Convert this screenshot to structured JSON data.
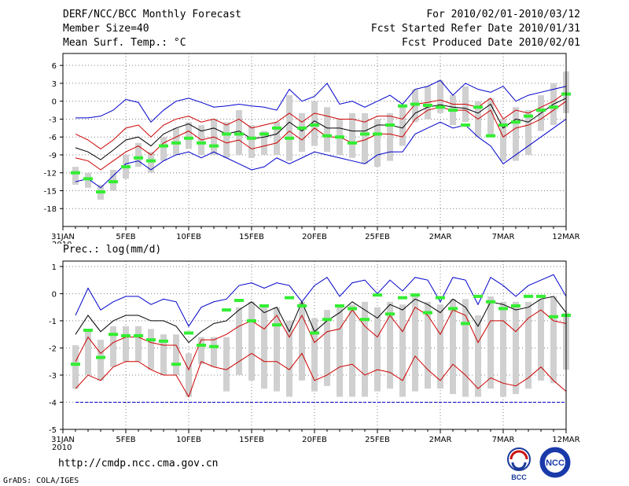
{
  "header": {
    "title": "DERF/NCC/BCC Monthly Forecast",
    "member_size": "Member Size=40",
    "panel1_label": "Mean Surf. Temp.: °C",
    "period": "For 2010/02/01-2010/03/12",
    "fcst_started": "Fcst Started Refer Date 2010/01/31",
    "fcst_produced": "Fcst Produced Date 2010/02/01"
  },
  "panel2_label": "Prec.: log(mm/d)",
  "footer": {
    "url": "http://cmdp.ncc.cma.gov.cn",
    "grads": "GrADS: COLA/IGES",
    "logo_bcc": "BCC",
    "logo_ncc": "NCC"
  },
  "x_axis": {
    "tick_labels": [
      "31JAN",
      "5FEB",
      "10FEB",
      "15FEB",
      "20FEB",
      "25FEB",
      "2MAR",
      "7MAR",
      "12MAR"
    ],
    "tick_days": [
      0,
      5,
      10,
      15,
      20,
      25,
      30,
      35,
      40
    ],
    "year_label": "2010"
  },
  "colors": {
    "mean": "#000000",
    "spread": "#cc0000",
    "extremes": "#0000cc",
    "box": "#d0d0d0",
    "obs": "#33ee33",
    "grid": "#808080"
  },
  "chart_data": [
    {
      "type": "line",
      "title": "Mean Surf. Temp.: °C",
      "x": [
        1,
        2,
        3,
        4,
        5,
        6,
        7,
        8,
        9,
        10,
        11,
        12,
        13,
        14,
        15,
        16,
        17,
        18,
        19,
        20,
        21,
        22,
        23,
        24,
        25,
        26,
        27,
        28,
        29,
        30,
        31,
        32,
        33,
        34,
        35,
        36,
        37,
        38,
        39,
        40
      ],
      "ylim": [
        -21,
        8
      ],
      "yticks": [
        6,
        3,
        0,
        -3,
        -6,
        -9,
        -12,
        -15,
        -18
      ],
      "series": [
        {
          "name": "max",
          "color": "blue",
          "values": [
            -2.8,
            -2.8,
            -2.5,
            -1.5,
            0.3,
            -0.2,
            -3.5,
            -1.5,
            0,
            0.5,
            -0.2,
            -1,
            -0.8,
            -0.5,
            -0.8,
            -1,
            -1.5,
            2,
            0,
            0.8,
            3,
            -0.5,
            0,
            -1,
            0,
            1,
            -0.5,
            2,
            2.5,
            3.5,
            1,
            3,
            2,
            1.5,
            2.5,
            0,
            1,
            1.5,
            2,
            2.5
          ]
        },
        {
          "name": "upper",
          "color": "red",
          "values": [
            -5.5,
            -6.5,
            -8,
            -6.5,
            -4.5,
            -4,
            -6,
            -4,
            -3,
            -2.5,
            -3.5,
            -3,
            -4,
            -3,
            -4.5,
            -4,
            -3.5,
            -2,
            -3.5,
            -2,
            -2.5,
            -3,
            -3,
            -3.5,
            -2.5,
            -2.5,
            -3,
            -0.5,
            -0.2,
            0.2,
            -0.5,
            -0.5,
            -1,
            0.5,
            -3,
            -1.5,
            -2,
            -1,
            0,
            1.5
          ]
        },
        {
          "name": "mean",
          "color": "black",
          "values": [
            -7.8,
            -8.5,
            -9.8,
            -8.2,
            -6.5,
            -6,
            -7.5,
            -5.5,
            -4.5,
            -3.8,
            -5,
            -4.5,
            -5.5,
            -5,
            -6.3,
            -6,
            -5.5,
            -3.5,
            -5,
            -3.3,
            -4.5,
            -4.5,
            -5,
            -5,
            -4,
            -4,
            -4.5,
            -2,
            -1,
            -0.6,
            -1,
            -1.2,
            -2,
            -0.5,
            -4.5,
            -3,
            -3.5,
            -2,
            -0.5,
            0.5
          ]
        },
        {
          "name": "lower",
          "color": "red",
          "values": [
            -9.5,
            -10,
            -11.5,
            -10,
            -8.5,
            -7.5,
            -9,
            -7,
            -6,
            -5,
            -6.5,
            -6,
            -7,
            -6.5,
            -8,
            -7.5,
            -7,
            -5,
            -6.5,
            -4.5,
            -6,
            -6,
            -7,
            -6.5,
            -5.5,
            -5.5,
            -6,
            -3,
            -1.5,
            -1,
            -1.5,
            -1.5,
            -3,
            -1.5,
            -6,
            -4.5,
            -4,
            -3,
            -1.5,
            0
          ]
        },
        {
          "name": "min",
          "color": "blue",
          "values": [
            -13.5,
            -13,
            -14.5,
            -12.5,
            -10.5,
            -10,
            -11.5,
            -10,
            -9,
            -8.5,
            -9.5,
            -8.5,
            -9.5,
            -10.5,
            -11.5,
            -11,
            -9.5,
            -10.5,
            -9.5,
            -8.5,
            -9,
            -9.5,
            -10,
            -10.5,
            -9,
            -8.5,
            -8.5,
            -5.5,
            -4.5,
            -3.5,
            -4.5,
            -4,
            -6,
            -7.5,
            -10.5,
            -9,
            -7.5,
            -6,
            -4.5,
            -3
          ]
        }
      ],
      "boxes": [
        [
          -14,
          -11
        ],
        [
          -14.5,
          -12
        ],
        [
          -16.5,
          -14
        ],
        [
          -15,
          -11.5
        ],
        [
          -13,
          -9
        ],
        [
          -11,
          -7
        ],
        [
          -12,
          -8.5
        ],
        [
          -10,
          -6
        ],
        [
          -9,
          -4.5
        ],
        [
          -8,
          -3.5
        ],
        [
          -9,
          -4
        ],
        [
          -9,
          -3
        ],
        [
          -9.5,
          -3.5
        ],
        [
          -9,
          -1.5
        ],
        [
          -9.5,
          -4
        ],
        [
          -9,
          -5
        ],
        [
          -9,
          -3.5
        ],
        [
          -10,
          1
        ],
        [
          -8.5,
          -2
        ],
        [
          -7.5,
          0
        ],
        [
          -8.5,
          -1
        ],
        [
          -9,
          -3
        ],
        [
          -9.5,
          -2
        ],
        [
          -10.5,
          -2
        ],
        [
          -11,
          -3
        ],
        [
          -10,
          -2
        ],
        [
          -7.5,
          -1
        ],
        [
          -3.5,
          2
        ],
        [
          -3,
          2.5
        ],
        [
          -2,
          3.5
        ],
        [
          -4,
          1
        ],
        [
          -3.5,
          2.5
        ],
        [
          -6,
          0
        ],
        [
          -6,
          0.5
        ],
        [
          -10,
          -3
        ],
        [
          -10,
          -1
        ],
        [
          -9,
          -1.5
        ],
        [
          -5,
          1
        ],
        [
          -4,
          3
        ],
        [
          -2,
          5
        ]
      ],
      "observed": [
        -12,
        -13,
        -15.2,
        -13.5,
        -11,
        -9.5,
        -10,
        -7.5,
        -7,
        -6.2,
        -7,
        -7.5,
        -5.5,
        -5.5,
        -6.2,
        -5.5,
        -4.5,
        -6.2,
        -4.5,
        -4,
        -5.8,
        -6,
        -7,
        -5.5,
        -5.5,
        -4,
        -0.8,
        -0.5,
        -0.7,
        -1,
        -1.5,
        -4,
        -1,
        -5.8,
        -4,
        -3.5,
        -2.5,
        -1.5,
        -1,
        1.2
      ]
    },
    {
      "type": "line",
      "title": "Prec.: log(mm/d)",
      "x": [
        1,
        2,
        3,
        4,
        5,
        6,
        7,
        8,
        9,
        10,
        11,
        12,
        13,
        14,
        15,
        16,
        17,
        18,
        19,
        20,
        21,
        22,
        23,
        24,
        25,
        26,
        27,
        28,
        29,
        30,
        31,
        32,
        33,
        34,
        35,
        36,
        37,
        38,
        39,
        40
      ],
      "ylim": [
        -5,
        1.2
      ],
      "yticks": [
        1,
        0,
        -1,
        -2,
        -3,
        -4,
        -5
      ],
      "series": [
        {
          "name": "max",
          "color": "blue",
          "values": [
            -0.8,
            0.2,
            -0.6,
            -0.3,
            -0.1,
            -0.1,
            -0.4,
            -0.2,
            -0.3,
            -1.2,
            -0.5,
            -0.3,
            -0.2,
            0.3,
            0.4,
            0.2,
            0.4,
            0.3,
            -0.3,
            0.3,
            0.6,
            -0.1,
            0.4,
            0.5,
            0,
            0.5,
            0.1,
            0.6,
            0.5,
            -0.3,
            0.6,
            0.5,
            -0.4,
            0.6,
            0.3,
            -0.1,
            0.3,
            0.5,
            0.7,
            -0.1
          ]
        },
        {
          "name": "upper",
          "color": "black",
          "values": [
            -1.5,
            -0.8,
            -1.4,
            -1,
            -0.8,
            -0.8,
            -1,
            -1,
            -1.2,
            -1.8,
            -1.4,
            -1.1,
            -1,
            -0.6,
            -0.3,
            -0.7,
            -0.5,
            -1.4,
            -0.3,
            -1.4,
            -1,
            -0.7,
            -0.3,
            -0.6,
            -0.9,
            -0.4,
            -0.6,
            -0.2,
            -0.4,
            -0.7,
            -0.2,
            -0.5,
            -1.2,
            -0.3,
            -0.4,
            -0.6,
            -0.5,
            -0.2,
            -0.1,
            -0.7
          ]
        },
        {
          "name": "mean",
          "color": "red",
          "values": [
            -2.5,
            -1.6,
            -2.2,
            -1.8,
            -1.6,
            -1.6,
            -1.8,
            -1.9,
            -1.9,
            -2.8,
            -1.7,
            -1.7,
            -1.5,
            -1.2,
            -1,
            -1.3,
            -0.8,
            -1.6,
            -0.8,
            -1.8,
            -1.4,
            -1.3,
            -0.6,
            -1.2,
            -1.6,
            -0.8,
            -1.4,
            -0.5,
            -0.8,
            -1.5,
            -0.6,
            -0.8,
            -1.8,
            -1,
            -1,
            -1.4,
            -0.9,
            -0.6,
            -1,
            -1.1
          ]
        },
        {
          "name": "lower",
          "color": "red",
          "values": [
            -3.5,
            -3,
            -3.2,
            -2.7,
            -2.5,
            -2.5,
            -2.8,
            -3,
            -3,
            -3.8,
            -2.5,
            -2.7,
            -2.8,
            -2.5,
            -2.2,
            -2.5,
            -2.5,
            -2.8,
            -2.2,
            -3.2,
            -3,
            -2.7,
            -2.6,
            -3,
            -2.8,
            -2.9,
            -3.2,
            -2.3,
            -2.8,
            -3.2,
            -2.6,
            -3,
            -3.5,
            -3.1,
            -3.3,
            -3.4,
            -3.1,
            -2.7,
            -3.2,
            -3.6
          ]
        },
        {
          "name": "min",
          "color": "blue",
          "values": [
            -4,
            -4,
            -4,
            -4,
            -4,
            -4,
            -4,
            -4,
            -4,
            -4,
            -4,
            -4,
            -4,
            -4,
            -4,
            -4,
            -4,
            -4,
            -4,
            -4,
            -4,
            -4,
            -4,
            -4,
            -4,
            -4,
            -4,
            -4,
            -4,
            -4,
            -4,
            -4,
            -4,
            -4,
            -4,
            -4,
            -4,
            -4,
            -4,
            -4
          ]
        }
      ],
      "boxes": [
        [
          -3.5,
          -1.9
        ],
        [
          -3,
          -1.3
        ],
        [
          -3.2,
          -1.7
        ],
        [
          -2.7,
          -1.2
        ],
        [
          -2.5,
          -1.2
        ],
        [
          -2.5,
          -1.2
        ],
        [
          -2.8,
          -1.3
        ],
        [
          -3,
          -1.5
        ],
        [
          -3,
          -1.5
        ],
        [
          -3.8,
          -2.2
        ],
        [
          -2.6,
          -1.6
        ],
        [
          -2.7,
          -1.6
        ],
        [
          -3.6,
          -1.6
        ],
        [
          -3,
          -0.5
        ],
        [
          -3.2,
          -0.3
        ],
        [
          -3.5,
          -0.5
        ],
        [
          -3.6,
          -0.5
        ],
        [
          -3.8,
          -1
        ],
        [
          -3.2,
          -0.3
        ],
        [
          -3.6,
          -0.9
        ],
        [
          -3.4,
          -0.6
        ],
        [
          -3.8,
          -0.4
        ],
        [
          -3.8,
          -0.4
        ],
        [
          -3.8,
          -0.3
        ],
        [
          -3.6,
          -0.5
        ],
        [
          -3.5,
          -0.3
        ],
        [
          -3.8,
          -0.4
        ],
        [
          -3.6,
          -0.1
        ],
        [
          -3.5,
          -0.3
        ],
        [
          -3.5,
          -0.4
        ],
        [
          -3.7,
          -0.2
        ],
        [
          -3.8,
          -0.2
        ],
        [
          -3.8,
          -0.8
        ],
        [
          -3.5,
          -0.1
        ],
        [
          -3.8,
          -0.3
        ],
        [
          -3.7,
          -0.3
        ],
        [
          -3.5,
          -0.3
        ],
        [
          -3.2,
          -0.2
        ],
        [
          -3.3,
          -0.1
        ],
        [
          -2.8,
          -0.7
        ]
      ],
      "observed": [
        -2.6,
        -1.35,
        -2.35,
        -1.5,
        -1.55,
        -1.55,
        -1.7,
        -1.75,
        -2.6,
        -1.45,
        -1.9,
        -1.95,
        -0.6,
        -0.25,
        -1,
        -0.45,
        -1.15,
        -0.15,
        -0.45,
        -1.45,
        -0.95,
        -0.45,
        -0.55,
        -0.95,
        -0.05,
        -0.75,
        -0.15,
        -0.05,
        -0.7,
        -0.15,
        -0.55,
        -1.1,
        -0.1,
        -0.3,
        -0.55,
        -0.45,
        -0.1,
        -0.1,
        -0.85,
        -0.8
      ]
    }
  ]
}
